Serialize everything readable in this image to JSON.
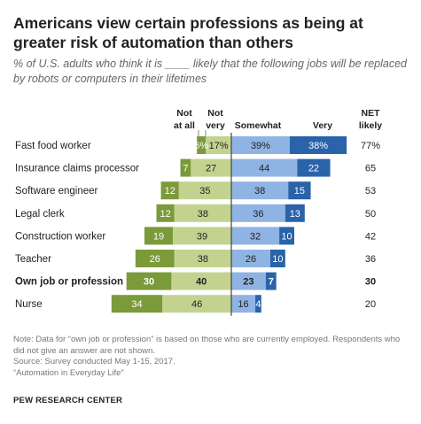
{
  "title": "Americans view certain professions as being at greater risk of automation than others",
  "subtitle": "% of U.S. adults who think it is ____ likely that the following jobs will be replaced by robots or computers in their lifetimes",
  "column_headers": {
    "not_at_all": [
      "Not",
      "at all"
    ],
    "not_very": [
      "Not",
      "very"
    ],
    "somewhat": "Somewhat",
    "very": "Very",
    "net": [
      "NET",
      "likely"
    ]
  },
  "colors": {
    "not_at_all": "#7b9a3a",
    "not_very": "#c3d38f",
    "somewhat": "#8fb4e3",
    "very": "#2a63a9",
    "divider": "#444444"
  },
  "chart_data": {
    "type": "bar",
    "stacked": "diverging",
    "categories": [
      "Fast food worker",
      "Insurance claims processor",
      "Software engineer",
      "Legal clerk",
      "Construction worker",
      "Teacher",
      "Own job or profession",
      "Nurse"
    ],
    "highlight_category": "Own job or profession",
    "series": [
      {
        "name": "Not at all",
        "values": [
          6,
          7,
          12,
          12,
          19,
          26,
          30,
          34
        ]
      },
      {
        "name": "Not very",
        "values": [
          17,
          27,
          35,
          38,
          39,
          38,
          40,
          46
        ]
      },
      {
        "name": "Somewhat",
        "values": [
          39,
          44,
          38,
          36,
          32,
          26,
          23,
          16
        ]
      },
      {
        "name": "Very",
        "values": [
          38,
          22,
          15,
          13,
          10,
          10,
          7,
          4
        ]
      }
    ],
    "net_likely": [
      77,
      65,
      53,
      50,
      42,
      36,
      30,
      20
    ],
    "value_labels": {
      "not_at_all": [
        "6%",
        "7",
        "12",
        "12",
        "19",
        "26",
        "30",
        "34"
      ],
      "not_very": [
        "17%",
        "27",
        "35",
        "38",
        "39",
        "38",
        "40",
        "46"
      ],
      "somewhat": [
        "39%",
        "44",
        "38",
        "36",
        "32",
        "26",
        "23",
        "16"
      ],
      "very": [
        "38%",
        "22",
        "15",
        "13",
        "10",
        "10",
        "7",
        "4"
      ],
      "net": [
        "77%",
        "65",
        "53",
        "50",
        "42",
        "36",
        "30",
        "20"
      ]
    }
  },
  "note": "Note: Data for “own job or profession” is based on those who are currently employed. Respondents who did not give an answer are not shown.",
  "source": "Source: Survey conducted May 1-15, 2017.",
  "report": "“Automation in Everyday Life”",
  "org": "PEW RESEARCH CENTER"
}
